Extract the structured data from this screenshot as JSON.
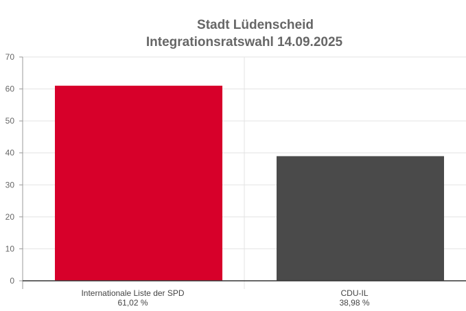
{
  "chart_data": {
    "type": "bar",
    "title": [
      "Stadt Lüdenscheid",
      "Integrationsratswahl 14.09.2025"
    ],
    "categories": [
      "Internationale Liste der SPD",
      "CDU-IL"
    ],
    "value_labels": [
      "61,02 %",
      "38,98 %"
    ],
    "values": [
      61.02,
      38.98
    ],
    "colors": [
      "#d7002a",
      "#4a4a4a"
    ],
    "ylim": [
      0,
      70
    ],
    "yticks": [
      0,
      10,
      20,
      30,
      40,
      50,
      60,
      70
    ],
    "xlabel": "",
    "ylabel": "",
    "grid": true
  }
}
